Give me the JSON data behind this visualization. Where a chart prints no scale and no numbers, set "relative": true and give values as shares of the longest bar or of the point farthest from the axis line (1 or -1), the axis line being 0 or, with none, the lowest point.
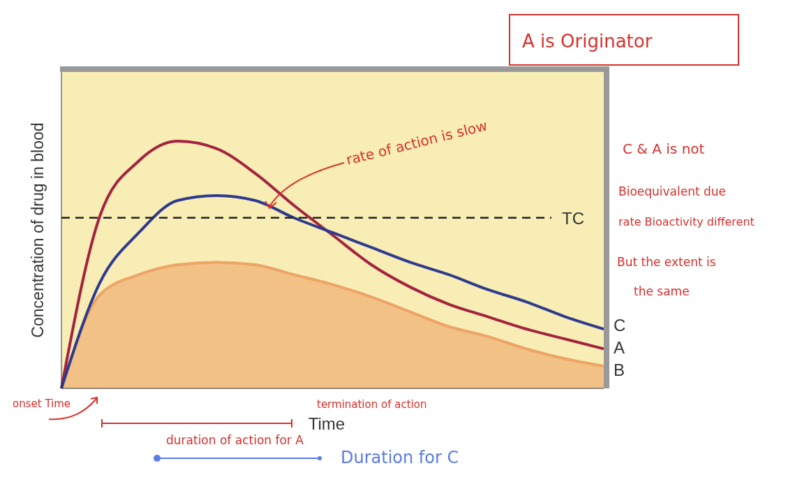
{
  "chart_data": {
    "type": "line",
    "relative": true,
    "xlabel": "Time",
    "ylabel": "Concentration of drug in blood",
    "categories": [
      null,
      null,
      null,
      null,
      null,
      null,
      null,
      null,
      null,
      null,
      null,
      null,
      null,
      null,
      null
    ],
    "series": [
      {
        "name": "A",
        "color": "#a3233f",
        "values": [
          0,
          0.7,
          0.92,
          1,
          0.97,
          0.87,
          0.74,
          0.62,
          0.5,
          0.41,
          0.34,
          0.29,
          0.24,
          0.2,
          0.16
        ]
      },
      {
        "name": "C",
        "color": "#2e3a8f",
        "values": [
          0,
          0.43,
          0.63,
          0.76,
          0.78,
          0.76,
          0.69,
          0.63,
          0.57,
          0.51,
          0.46,
          0.4,
          0.35,
          0.29,
          0.24
        ]
      },
      {
        "name": "B",
        "type": "area",
        "color": "#eda466",
        "values": [
          0,
          0.38,
          0.46,
          0.5,
          0.51,
          0.5,
          0.46,
          0.42,
          0.37,
          0.31,
          0.25,
          0.21,
          0.16,
          0.12,
          0.09
        ]
      }
    ],
    "ref_lines": [
      {
        "axis": "y",
        "value": 0.69,
        "label": "TC",
        "color": "#222222",
        "line_style": "dashed"
      }
    ],
    "annotations": [
      "A is Originator",
      "rate of action is slow",
      "C & A is not",
      "Bioequivalent due",
      "rate Bioactivity different",
      "But the extent is",
      "the same",
      "onset Time",
      "termination of action",
      "duration of action for A",
      "Duration for C"
    ],
    "grid": false
  }
}
